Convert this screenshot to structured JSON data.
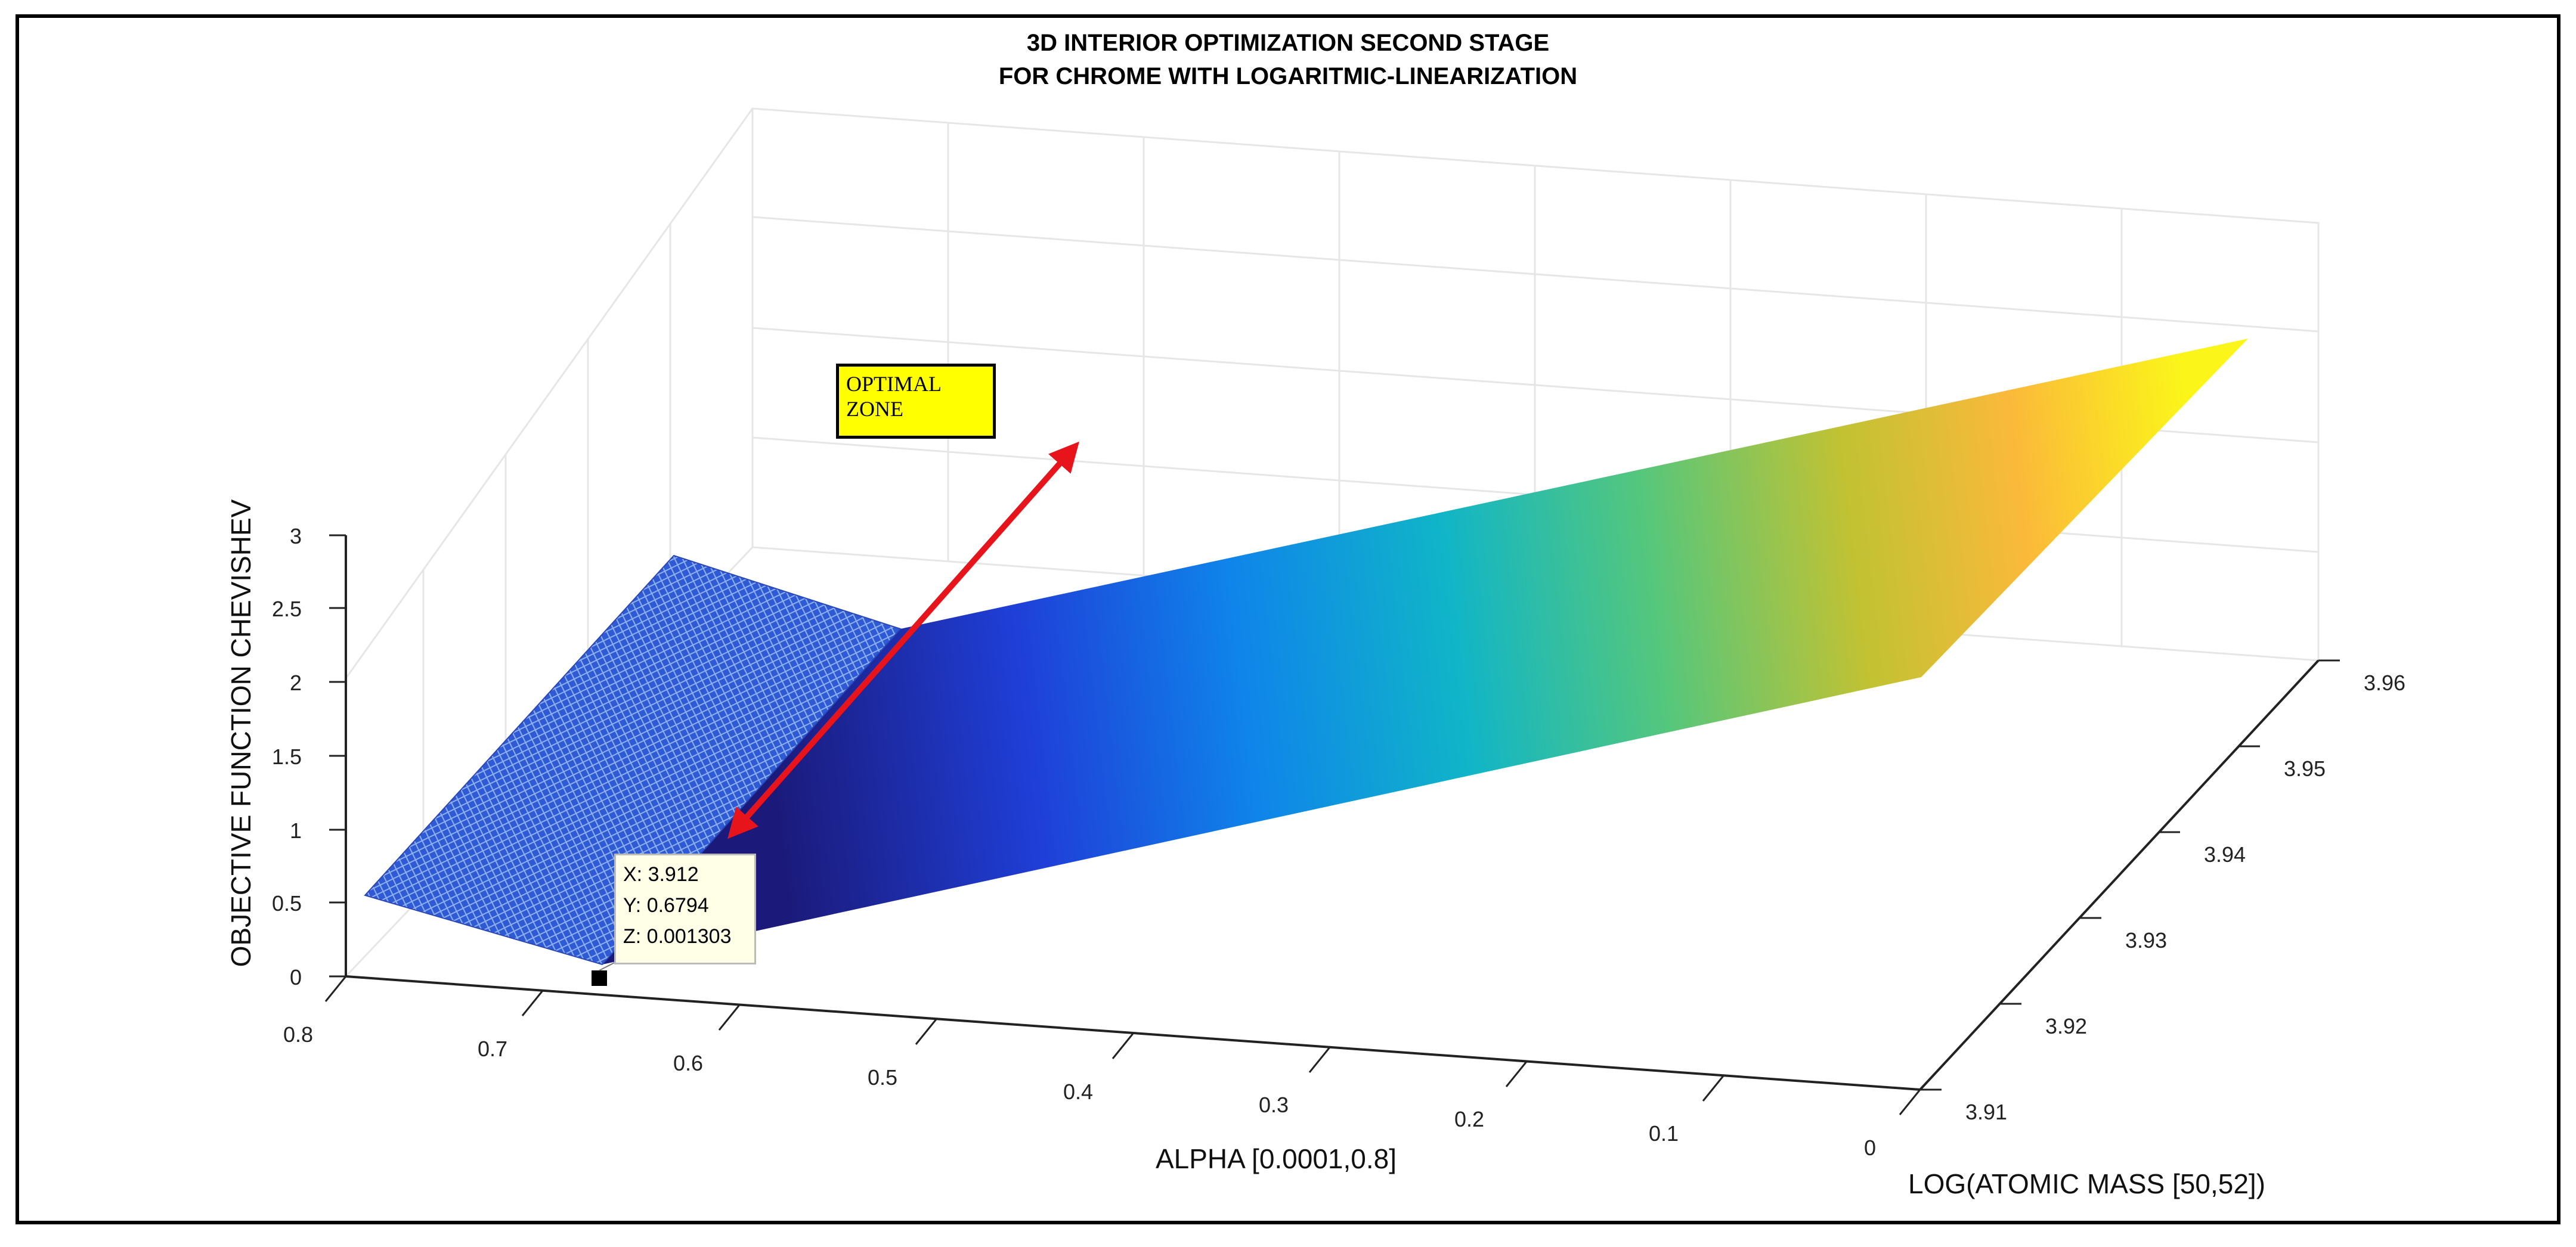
{
  "chart_data": {
    "type": "surface",
    "title": [
      "3D INTERIOR OPTIMIZATION SECOND STAGE",
      "FOR CHROME WITH LOGARITMIC-LINEARIZATION"
    ],
    "xlabel": "ALPHA [0.0001,0.8]",
    "ylabel": "LOG(ATOMIC MASS [50,52])",
    "zlabel": "OBJECTIVE FUNCTION CHEVISHEV",
    "x_ticks": [
      "0.8",
      "0.7",
      "0.6",
      "0.5",
      "0.4",
      "0.3",
      "0.2",
      "0.1",
      "0"
    ],
    "y_ticks": [
      "3.91",
      "3.92",
      "3.93",
      "3.94",
      "3.95",
      "3.96"
    ],
    "z_ticks": [
      "0",
      "0.5",
      "1",
      "1.5",
      "2",
      "2.5",
      "3"
    ],
    "xlim": [
      0,
      0.8
    ],
    "ylim": [
      3.91,
      3.96
    ],
    "zlim": [
      0,
      3
    ],
    "grid": true,
    "colormap": "parula",
    "surface_note": "Objective value rises linearly with log(atomic mass) and steeply with alpha; minimum at the marked data tip",
    "data_tip": {
      "x": "X: 3.912",
      "y": "Y: 0.6794",
      "z": "Z: 0.001303",
      "x_val": 3.912,
      "y_val": 0.6794,
      "z_val": 0.001303
    },
    "annotation": {
      "line1": "OPTIMAL",
      "line2": "ZONE",
      "arrow_color": "#e8141c",
      "box_color": "#ffff00"
    }
  }
}
